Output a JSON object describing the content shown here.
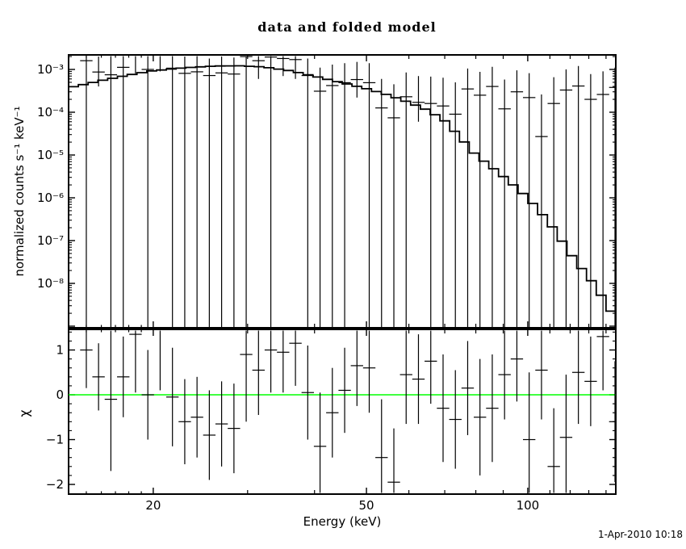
{
  "window": {
    "background": "#ffffff",
    "foreground": "#000000"
  },
  "footer": {
    "timestamp": "1-Apr-2010 10:18"
  },
  "chart_data": {
    "type": "scatter",
    "layout": "two-panel-shared-x",
    "title": "data and folded model",
    "xlabel": "Energy (keV)",
    "xscale": "log",
    "xlim": [
      13.9,
      146
    ],
    "x_major_ticks": [
      {
        "v": 20,
        "label": "20"
      },
      {
        "v": 50,
        "label": "50"
      },
      {
        "v": 100,
        "label": "100"
      }
    ],
    "x_minor_ticks": [
      15,
      16,
      17,
      18,
      19,
      30,
      40,
      60,
      70,
      80,
      90,
      110,
      120,
      130,
      140
    ],
    "grid": "off",
    "legend": "none",
    "energy_kev": [
      15.0,
      15.81,
      16.67,
      17.58,
      18.53,
      19.54,
      20.6,
      21.72,
      22.9,
      24.14,
      25.45,
      26.83,
      28.29,
      29.82,
      31.44,
      33.15,
      34.95,
      36.85,
      38.85,
      40.96,
      43.18,
      45.53,
      48.0,
      50.6,
      53.35,
      56.25,
      59.3,
      62.52,
      65.92,
      69.5,
      73.27,
      77.25,
      81.44,
      85.86,
      90.52,
      95.44,
      100.62,
      106.09,
      111.85,
      117.92,
      124.32,
      131.07,
      138.19,
      145.69
    ],
    "bin_half_width_factor": 1.027,
    "panels": [
      {
        "name": "spectrum",
        "ylabel": "normalized counts s⁻¹ keV⁻¹",
        "yscale": "log",
        "ylim_log10": [
          -9.06,
          -2.66
        ],
        "y_major_ticks": [
          {
            "log10": -3,
            "label": "10⁻³"
          },
          {
            "log10": -4,
            "label": "10⁻⁴"
          },
          {
            "log10": -5,
            "label": "10⁻⁵"
          },
          {
            "log10": -6,
            "label": "10⁻⁶"
          },
          {
            "log10": -7,
            "label": "10⁻⁷"
          },
          {
            "log10": -8,
            "label": "10⁻⁸"
          },
          {
            "log10": -9,
            "label": ""
          }
        ],
        "data_series": {
          "name": "data",
          "rate": [
            0.0016,
            0.00087,
            0.00075,
            0.00112,
            0.0021,
            0.001,
            0.0024,
            0.00107,
            0.00081,
            0.00088,
            0.00072,
            0.00083,
            0.00078,
            0.002,
            0.0016,
            0.00195,
            0.0018,
            0.0017,
            0.00072,
            0.00031,
            0.00042,
            0.00049,
            0.00058,
            0.00049,
            0.000126,
            7.4e-05,
            0.00023,
            0.00017,
            0.00016,
            0.00014,
            9e-05,
            0.00035,
            0.00025,
            0.0004,
            0.00012,
            0.0003,
            0.00022,
            2.7e-05,
            0.00016,
            0.00033,
            0.00041,
            0.0002,
            0.00026,
            0.00038
          ],
          "err_upper": [
            0.003,
            0.002,
            0.0022,
            0.0026,
            0.0034,
            0.0024,
            0.0034,
            0.0025,
            0.002,
            0.0021,
            0.0018,
            0.002,
            0.0019,
            0.0032,
            0.0028,
            0.0032,
            0.003,
            0.0029,
            0.0018,
            0.0011,
            0.0013,
            0.0014,
            0.0015,
            0.0014,
            0.0006,
            0.00045,
            0.00085,
            0.0007,
            0.00068,
            0.00064,
            0.0005,
            0.00105,
            0.00088,
            0.00115,
            0.00058,
            0.00095,
            0.00082,
            0.00026,
            0.00066,
            0.001,
            0.0012,
            0.00078,
            0.0009,
            0.0011
          ],
          "err_lower": [
            0,
            0.0004,
            0,
            0,
            0.0008,
            0,
            0.0009,
            0,
            0,
            0,
            0,
            0,
            0,
            0,
            0.0006,
            0,
            0.0007,
            0.0006,
            0,
            0,
            0,
            0,
            0.00022,
            0,
            0,
            0,
            0,
            6e-05,
            0,
            0,
            0,
            0,
            0,
            0,
            0,
            0,
            0,
            0,
            0,
            0,
            0,
            0,
            0,
            0
          ],
          "err_lower_zero_means": "bar extends to panel floor"
        },
        "model_series": {
          "name": "folded model",
          "style": "step",
          "bins": 56,
          "knots_e_log10v": [
            [
              13.9,
              -3.43
            ],
            [
              16,
              -3.26
            ],
            [
              18,
              -3.13
            ],
            [
              20,
              -3.03
            ],
            [
              23,
              -2.96
            ],
            [
              26,
              -2.92
            ],
            [
              29,
              -2.915
            ],
            [
              32,
              -2.94
            ],
            [
              36,
              -3.03
            ],
            [
              40,
              -3.16
            ],
            [
              45,
              -3.31
            ],
            [
              50,
              -3.45
            ],
            [
              55,
              -3.6
            ],
            [
              60,
              -3.77
            ],
            [
              65,
              -3.95
            ],
            [
              70,
              -4.2
            ],
            [
              75,
              -4.6
            ],
            [
              80,
              -5.0
            ],
            [
              85,
              -5.25
            ],
            [
              90,
              -5.5
            ],
            [
              95,
              -5.75
            ],
            [
              100,
              -6.0
            ],
            [
              105,
              -6.3
            ],
            [
              110,
              -6.6
            ],
            [
              115,
              -6.95
            ],
            [
              120,
              -7.3
            ],
            [
              125,
              -7.6
            ],
            [
              130,
              -7.85
            ],
            [
              135,
              -8.15
            ],
            [
              140,
              -8.45
            ],
            [
              146,
              -8.85
            ]
          ]
        }
      },
      {
        "name": "residuals",
        "ylabel": "χ",
        "yscale": "linear",
        "ylim": [
          -2.22,
          1.46
        ],
        "y_major_ticks": [
          {
            "v": 1,
            "label": "1"
          },
          {
            "v": 0,
            "label": "0"
          },
          {
            "v": -1,
            "label": "−1"
          },
          {
            "v": -2,
            "label": "−2"
          }
        ],
        "y_minor_step": 0.2,
        "zero_line": {
          "y": 0,
          "color": "#00ff00"
        },
        "data_series": {
          "name": "chi",
          "chi": [
            1.0,
            0.4,
            -0.1,
            0.4,
            1.35,
            0.0,
            1.45,
            -0.05,
            -0.6,
            -0.5,
            -0.9,
            -0.65,
            -0.75,
            0.9,
            0.55,
            1.0,
            0.95,
            1.15,
            0.05,
            -1.15,
            -0.4,
            0.1,
            0.65,
            0.6,
            -1.4,
            -1.95,
            0.45,
            0.35,
            0.75,
            -0.3,
            -0.55,
            0.15,
            -0.5,
            -0.3,
            0.45,
            0.8,
            -1.0,
            0.55,
            -1.6,
            -0.95,
            0.5,
            0.3,
            1.3,
            -0.6
          ],
          "chi_err": [
            0.85,
            0.75,
            1.6,
            0.9,
            1.3,
            1.0,
            1.35,
            1.1,
            0.95,
            0.9,
            1.0,
            0.95,
            1.0,
            1.5,
            1.0,
            0.95,
            0.9,
            0.95,
            1.05,
            1.2,
            1.0,
            0.95,
            0.9,
            1.0,
            1.3,
            1.2,
            1.1,
            1.0,
            0.95,
            1.2,
            1.1,
            1.05,
            1.3,
            1.2,
            1.0,
            0.95,
            1.5,
            1.1,
            1.3,
            1.4,
            1.15,
            1.0,
            1.2,
            1.35
          ]
        }
      }
    ]
  }
}
